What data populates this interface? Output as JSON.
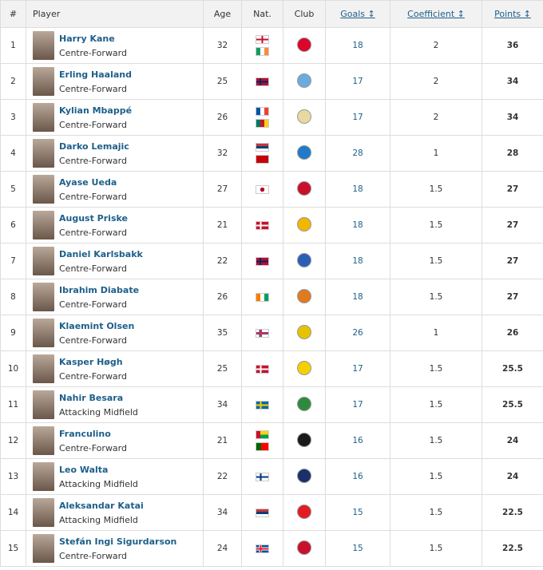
{
  "headers": {
    "rank": "#",
    "player": "Player",
    "age": "Age",
    "nat": "Nat.",
    "club": "Club",
    "goals": "Goals ↕",
    "coef": "Coefficient ↕",
    "points": "Points ↕"
  },
  "flag_styles": {
    "eng": "linear-gradient(90deg,transparent 42%,#c8102e 42%,#c8102e 58%,transparent 58%),linear-gradient(transparent 38%,#c8102e 38%,#c8102e 62%,transparent 62%),#fff",
    "irl": "linear-gradient(90deg,#169b62 33%,#fff 33%,#fff 66%,#ff883e 66%)",
    "nor": "linear-gradient(90deg,transparent 28%,#002868 28%,#002868 40%,transparent 40%),linear-gradient(transparent 40%,#002868 40%,#002868 60%,transparent 60%),#ba0c2f",
    "fra": "linear-gradient(90deg,#0055a4 33%,#fff 33%,#fff 66%,#ef4135 66%)",
    "cmr": "linear-gradient(90deg,#007a5e 33%,#ce1126 33%,#ce1126 66%,#fcd116 66%)",
    "srb": "linear-gradient(#c6363c 33%,#0c4076 33%,#0c4076 66%,#fff 66%)",
    "mne": "#c40308",
    "jpn": "radial-gradient(circle,#bc002d 30%,#fff 32%)",
    "den": "linear-gradient(90deg,transparent 30%,#fff 30%,#fff 42%,transparent 42%),linear-gradient(transparent 40%,#fff 40%,#fff 60%,transparent 60%),#c8102e",
    "civ": "linear-gradient(90deg,#f77f00 33%,#fff 33%,#fff 66%,#009e60 66%)",
    "fro": "linear-gradient(90deg,transparent 30%,#ed2939 30%,#ed2939 42%,transparent 42%),linear-gradient(transparent 40%,#ed2939 40%,#ed2939 60%,transparent 60%),linear-gradient(90deg,transparent 25%,#005eb8 25%,#005eb8 47%,transparent 47%),linear-gradient(transparent 32%,#005eb8 32%,#005eb8 68%,transparent 68%),#fff",
    "swe": "linear-gradient(90deg,transparent 30%,#fecc00 30%,#fecc00 42%,transparent 42%),linear-gradient(transparent 40%,#fecc00 40%,#fecc00 60%,transparent 60%),#006aa7",
    "gnb": "linear-gradient(90deg,#ce1126 33%,transparent 33%),linear-gradient(#fcd116 50%,#009e49 50%)",
    "por": "linear-gradient(90deg,#006600 40%,#ff0000 40%)",
    "fin": "linear-gradient(90deg,transparent 30%,#003580 30%,#003580 42%,transparent 42%),linear-gradient(transparent 40%,#003580 40%,#003580 60%,transparent 60%),#fff",
    "isl": "linear-gradient(90deg,transparent 30%,#dc1e35 30%,#dc1e35 42%,transparent 42%),linear-gradient(transparent 40%,#dc1e35 40%,#dc1e35 60%,transparent 60%),linear-gradient(90deg,transparent 25%,#fff 25%,#fff 47%,transparent 47%),linear-gradient(transparent 30%,#fff 30%,#fff 70%,transparent 70%),#02529c"
  },
  "rows": [
    {
      "rank": "1",
      "name": "Harry Kane",
      "position": "Centre-Forward",
      "age": "32",
      "flags": [
        "eng",
        "irl"
      ],
      "club_color": "#dc052d",
      "goals": "18",
      "coef": "2",
      "points": "36"
    },
    {
      "rank": "2",
      "name": "Erling Haaland",
      "position": "Centre-Forward",
      "age": "25",
      "flags": [
        "nor"
      ],
      "club_color": "#6cabdd",
      "goals": "17",
      "coef": "2",
      "points": "34"
    },
    {
      "rank": "3",
      "name": "Kylian Mbappé",
      "position": "Centre-Forward",
      "age": "26",
      "flags": [
        "fra",
        "cmr"
      ],
      "club_color": "#e8d9a0",
      "goals": "17",
      "coef": "2",
      "points": "34"
    },
    {
      "rank": "4",
      "name": "Darko Lemajic",
      "position": "Centre-Forward",
      "age": "32",
      "flags": [
        "srb",
        "mne"
      ],
      "club_color": "#1f7ac9",
      "goals": "28",
      "coef": "1",
      "points": "28"
    },
    {
      "rank": "5",
      "name": "Ayase Ueda",
      "position": "Centre-Forward",
      "age": "27",
      "flags": [
        "jpn"
      ],
      "club_color": "#c8102e",
      "goals": "18",
      "coef": "1.5",
      "points": "27"
    },
    {
      "rank": "6",
      "name": "August Priske",
      "position": "Centre-Forward",
      "age": "21",
      "flags": [
        "den"
      ],
      "club_color": "#f2b600",
      "goals": "18",
      "coef": "1.5",
      "points": "27"
    },
    {
      "rank": "7",
      "name": "Daniel Karlsbakk",
      "position": "Centre-Forward",
      "age": "22",
      "flags": [
        "nor"
      ],
      "club_color": "#2b5fb4",
      "goals": "18",
      "coef": "1.5",
      "points": "27"
    },
    {
      "rank": "8",
      "name": "Ibrahim Diabate",
      "position": "Centre-Forward",
      "age": "26",
      "flags": [
        "civ"
      ],
      "club_color": "#e07a1f",
      "goals": "18",
      "coef": "1.5",
      "points": "27"
    },
    {
      "rank": "9",
      "name": "Klaemint Olsen",
      "position": "Centre-Forward",
      "age": "35",
      "flags": [
        "fro"
      ],
      "club_color": "#e6c200",
      "goals": "26",
      "coef": "1",
      "points": "26"
    },
    {
      "rank": "10",
      "name": "Kasper Høgh",
      "position": "Centre-Forward",
      "age": "25",
      "flags": [
        "den"
      ],
      "club_color": "#f5d000",
      "goals": "17",
      "coef": "1.5",
      "points": "25.5"
    },
    {
      "rank": "11",
      "name": "Nahir Besara",
      "position": "Attacking Midfield",
      "age": "34",
      "flags": [
        "swe"
      ],
      "club_color": "#2e8b3e",
      "goals": "17",
      "coef": "1.5",
      "points": "25.5"
    },
    {
      "rank": "12",
      "name": "Franculino",
      "position": "Centre-Forward",
      "age": "21",
      "flags": [
        "gnb",
        "por"
      ],
      "club_color": "#1a1a1a",
      "goals": "16",
      "coef": "1.5",
      "points": "24"
    },
    {
      "rank": "13",
      "name": "Leo Walta",
      "position": "Attacking Midfield",
      "age": "22",
      "flags": [
        "fin"
      ],
      "club_color": "#1b2f6b",
      "goals": "16",
      "coef": "1.5",
      "points": "24"
    },
    {
      "rank": "14",
      "name": "Aleksandar Katai",
      "position": "Attacking Midfield",
      "age": "34",
      "flags": [
        "srb"
      ],
      "club_color": "#e31b23",
      "goals": "15",
      "coef": "1.5",
      "points": "22.5"
    },
    {
      "rank": "15",
      "name": "Stefán Ingi Sigurdarson",
      "position": "Centre-Forward",
      "age": "24",
      "flags": [
        "isl"
      ],
      "club_color": "#c8102e",
      "goals": "15",
      "coef": "1.5",
      "points": "22.5"
    }
  ]
}
